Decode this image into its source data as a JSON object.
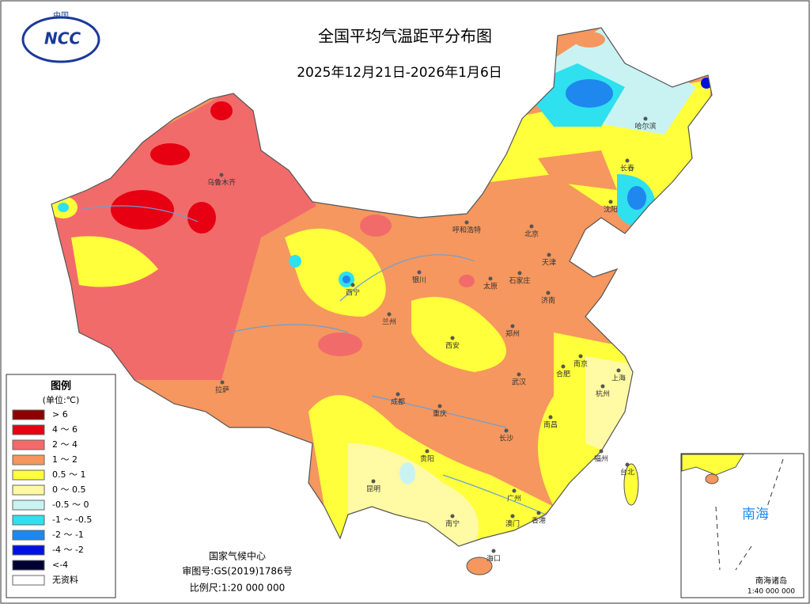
{
  "logo": {
    "top": "中国",
    "main": "NCC"
  },
  "header": {
    "title": "全国平均气温距平分布图",
    "subtitle": "2025年12月21日-2026年1月6日"
  },
  "legend": {
    "title": "图例",
    "unit": "(单位:℃)",
    "items": [
      {
        "label": "> 6",
        "color": "#8b0000"
      },
      {
        "label": "4 ～ 6",
        "color": "#e60012"
      },
      {
        "label": "2 ～ 4",
        "color": "#f26b6b"
      },
      {
        "label": "1 ～ 2",
        "color": "#f5975e"
      },
      {
        "label": "0.5 ～ 1",
        "color": "#ffff3c"
      },
      {
        "label": "0 ～ 0.5",
        "color": "#fffaa3"
      },
      {
        "label": "-0.5 ～ 0",
        "color": "#c9f3f3"
      },
      {
        "label": "-1 ～ -0.5",
        "color": "#2fe0ee"
      },
      {
        "label": "-2 ～ -1",
        "color": "#1e88ee"
      },
      {
        "label": "-4 ～ -2",
        "color": "#0010e0"
      },
      {
        "label": "<-4",
        "color": "#000033"
      },
      {
        "label": "无资料",
        "color": "#ffffff"
      }
    ]
  },
  "footer": {
    "agency": "国家气候中心",
    "approval": "审图号:GS(2019)1786号",
    "scale": "比例尺:1:20 000 000"
  },
  "inset": {
    "sea": "南海",
    "islands": "南海诸岛",
    "scale": "1:40 000 000"
  },
  "cities": [
    "乌鲁木齐",
    "拉萨",
    "西宁",
    "兰州",
    "银川",
    "呼和浩特",
    "北京",
    "天津",
    "石家庄",
    "太原",
    "济南",
    "郑州",
    "西安",
    "成都",
    "重庆",
    "贵阳",
    "昆明",
    "南宁",
    "广州",
    "澳门",
    "香港",
    "海口",
    "长沙",
    "武汉",
    "南昌",
    "合肥",
    "南京",
    "上海",
    "杭州",
    "福州",
    "台北",
    "哈尔滨",
    "长春",
    "沈阳"
  ]
}
